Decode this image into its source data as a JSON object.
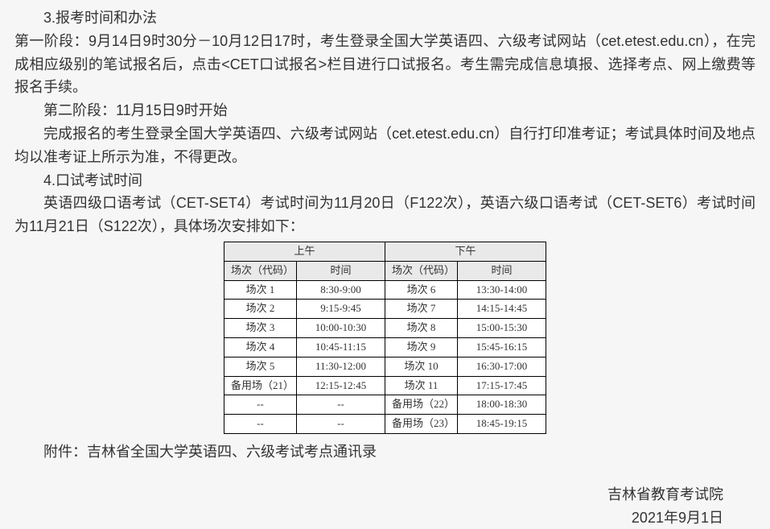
{
  "section3": {
    "heading": "3.报考时间和办法",
    "p1": "第一阶段：9月14日9时30分－10月12日17时，考生登录全国大学英语四、六级考试网站（cet.etest.edu.cn），在完成相应级别的笔试报名后，点击<CET口试报名>栏目进行口试报名。考生需完成信息填报、选择考点、网上缴费等报名手续。",
    "p2": "第二阶段：11月15日9时开始",
    "p3": "完成报名的考生登录全国大学英语四、六级考试网站（cet.etest.edu.cn）自行打印准考证；考试具体时间及地点均以准考证上所示为准，不得更改。"
  },
  "section4": {
    "heading": "4.口试考试时间",
    "p1": "英语四级口语考试（CET-SET4）考试时间为11月20日（F122次），英语六级口语考试（CET-SET6）考试时间为11月21日（S122次），具体场次安排如下："
  },
  "table": {
    "header_am": "上午",
    "header_pm": "下午",
    "sub_code": "场次（代码）",
    "sub_time": "时间",
    "rows": [
      {
        "am_code": "场次 1",
        "am_time": "8:30-9:00",
        "pm_code": "场次 6",
        "pm_time": "13:30-14:00"
      },
      {
        "am_code": "场次 2",
        "am_time": "9:15-9:45",
        "pm_code": "场次 7",
        "pm_time": "14:15-14:45"
      },
      {
        "am_code": "场次 3",
        "am_time": "10:00-10:30",
        "pm_code": "场次 8",
        "pm_time": "15:00-15:30"
      },
      {
        "am_code": "场次 4",
        "am_time": "10:45-11:15",
        "pm_code": "场次 9",
        "pm_time": "15:45-16:15"
      },
      {
        "am_code": "场次 5",
        "am_time": "11:30-12:00",
        "pm_code": "场次 10",
        "pm_time": "16:30-17:00"
      },
      {
        "am_code": "备用场（21）",
        "am_time": "12:15-12:45",
        "pm_code": "场次 11",
        "pm_time": "17:15-17:45"
      },
      {
        "am_code": "--",
        "am_time": "--",
        "pm_code": "备用场（22）",
        "pm_time": "18:00-18:30"
      },
      {
        "am_code": "--",
        "am_time": "--",
        "pm_code": "备用场（23）",
        "pm_time": "18:45-19:15"
      }
    ]
  },
  "attachment": "附件：吉林省全国大学英语四、六级考试考点通讯录",
  "footer": {
    "org": "吉林省教育考试院",
    "date": "2021年9月1日"
  }
}
